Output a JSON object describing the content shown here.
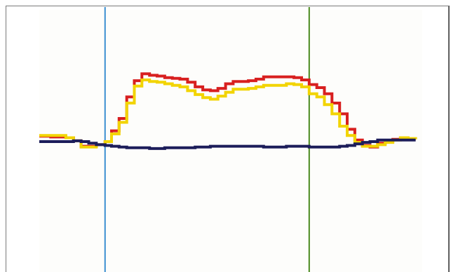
{
  "chart_data": {
    "type": "line",
    "title": "",
    "xlabel": "",
    "ylabel": "",
    "xlim": [
      0,
      100
    ],
    "ylim": [
      -100,
      100
    ],
    "grid": false,
    "legend": "none",
    "markers": [
      {
        "x": 17.3,
        "color": "#3a8fd0"
      },
      {
        "x": 71.0,
        "color": "#4a8a1e"
      }
    ],
    "series": [
      {
        "color": "#d81f1f",
        "x": [
          0,
          3,
          7,
          9,
          11,
          13,
          15,
          17.3,
          19,
          21,
          23,
          25,
          27,
          29,
          31,
          33,
          35,
          37,
          39,
          41,
          43,
          45,
          47,
          49,
          51,
          53,
          55,
          57,
          59,
          61,
          63,
          65,
          67,
          69,
          71,
          73,
          75,
          77,
          79,
          81,
          83,
          85,
          87,
          89,
          91,
          93,
          95,
          97,
          99
        ],
        "y": [
          7,
          6,
          5,
          1,
          -6,
          -6,
          -4,
          0,
          14,
          30,
          58,
          79,
          88,
          86,
          85,
          83,
          82,
          81,
          77,
          71,
          67,
          66,
          69,
          75,
          78,
          78,
          79,
          81,
          84,
          84,
          84,
          84,
          83,
          80,
          74,
          70,
          62,
          50,
          36,
          16,
          2,
          -5,
          -7,
          -2,
          0,
          3,
          5,
          3,
          3
        ]
      },
      {
        "color": "#f2d400",
        "x": [
          0,
          3,
          7,
          9,
          11,
          13,
          15,
          17.3,
          19,
          21,
          23,
          25,
          27,
          29,
          31,
          33,
          35,
          37,
          39,
          41,
          43,
          45,
          47,
          49,
          51,
          53,
          55,
          57,
          59,
          61,
          63,
          65,
          67,
          69,
          71,
          73,
          75,
          77,
          79,
          81,
          83,
          85,
          87,
          89,
          91,
          93,
          95,
          97,
          99
        ],
        "y": [
          8,
          8,
          5,
          1,
          -7,
          -7,
          -4,
          0,
          10,
          25,
          50,
          72,
          80,
          78,
          77,
          75,
          73,
          71,
          66,
          61,
          57,
          55,
          59,
          64,
          68,
          68,
          69,
          71,
          73,
          73,
          73,
          75,
          74,
          71,
          62,
          58,
          48,
          36,
          20,
          8,
          -1,
          -6,
          -6,
          -4,
          -1,
          2,
          5,
          4,
          3
        ]
      },
      {
        "color": "#1c1d5a",
        "x": [
          0,
          3,
          7,
          9,
          11,
          13,
          15,
          17.3,
          19,
          21,
          23,
          25,
          27,
          29,
          31,
          33,
          35,
          37,
          39,
          41,
          43,
          45,
          47,
          49,
          51,
          53,
          55,
          57,
          59,
          61,
          63,
          65,
          67,
          69,
          71,
          73,
          75,
          77,
          79,
          81,
          83,
          85,
          87,
          89,
          91,
          93,
          95,
          97,
          99
        ],
        "y": [
          0,
          0,
          0,
          1,
          0,
          -2,
          -4,
          -5,
          -6,
          -7,
          -8,
          -8,
          -8,
          -9,
          -9,
          -8,
          -8,
          -8,
          -8,
          -7,
          -7,
          -6,
          -6,
          -6,
          -6,
          -6,
          -6,
          -6,
          -7,
          -7,
          -7,
          -6,
          -6,
          -6,
          -7,
          -7,
          -7,
          -7,
          -6,
          -5,
          -3,
          -1,
          0,
          2,
          2,
          2,
          2,
          2,
          2
        ]
      }
    ]
  }
}
